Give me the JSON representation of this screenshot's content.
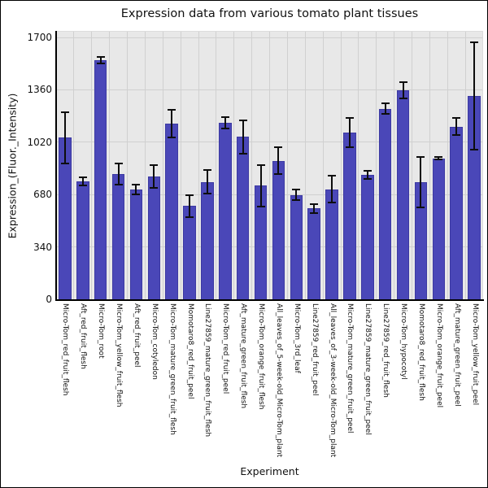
{
  "chart_data": {
    "type": "bar",
    "title": "Expression data from various tomato plant tissues",
    "xlabel": "Experiment",
    "ylabel": "Expression_(Fluor._Intensity)",
    "ylim": [
      0,
      1700
    ],
    "yticks": [
      0,
      340,
      680,
      1020,
      1360,
      1700
    ],
    "grid": true,
    "legend": "none",
    "categories": [
      "Micro-Tom_red_fruit_flesh",
      "Aft_red_fruit_flesh",
      "Micro-Tom_root",
      "Micro-Tom_yellow_fruit_flesh",
      "Aft_red_fruit_peel",
      "Micro-Tom_cotyledon",
      "Micro-Tom_mature_green_fruit_flesh",
      "Momotaro8_red_fruit_peel",
      "Line27859_mature_green_fruit_flesh",
      "Micro-Tom_red_fruit_peel",
      "Aft_mature_green_fruit_flesh",
      "Micro-Tom_orange_fruit_flesh",
      "All_leaves_of_5-week-old_Micro-Tom_plant",
      "Micro-Tom_3rd_leaf",
      "Line27859_red_fruit_peel",
      "All_leaves_of_3-week-old_Micro-Tom_plant",
      "Micro-Tom_mature_green_fruit_peel",
      "Line27859_mature_green_fruit_peel",
      "Line27859_red_fruit_flesh",
      "Micro-Tom_hypocotyl",
      "Momotaro8_red_fruit_flesh",
      "Micro-Tom_orange_fruit_peel",
      "Aft_mature_green_fruit_peel",
      "Micro-Tom_yellow_fruit_peel"
    ],
    "values": [
      1048,
      765,
      1552,
      812,
      715,
      796,
      1140,
      605,
      762,
      1145,
      1055,
      738,
      900,
      678,
      590,
      715,
      1080,
      810,
      1238,
      1358,
      760,
      915,
      1120,
      1320
    ],
    "errors": [
      170,
      31,
      26,
      73,
      37,
      78,
      94,
      78,
      83,
      43,
      114,
      139,
      92,
      40,
      35,
      92,
      100,
      32,
      38,
      57,
      168,
      12,
      61,
      352
    ],
    "colors": {
      "bar": "#4a47b8",
      "bar_edge": "#3c39a2",
      "error": "#0d0d0d",
      "plot_bg": "#e8e8e8",
      "grid": "#d0d0d0",
      "text": "#111111"
    }
  }
}
